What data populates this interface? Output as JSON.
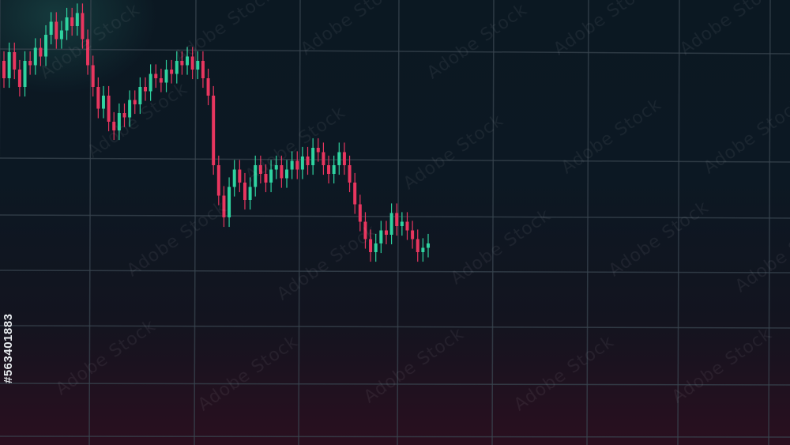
{
  "chart_data": {
    "type": "candlestick",
    "title": "",
    "xlabel": "",
    "ylabel": "",
    "grid": true,
    "colors": {
      "up": "#2fd3a0",
      "down": "#e8365f",
      "grid": "#3a4550",
      "background_top": "#0b1822",
      "background_bottom": "#2a0f1f"
    },
    "ylim": [
      0,
      100
    ],
    "close": [
      82,
      88,
      84,
      80,
      86,
      85,
      89,
      87,
      92,
      95,
      91,
      93,
      96,
      94,
      97,
      91,
      85,
      80,
      75,
      78,
      72,
      70,
      74,
      73,
      77,
      76,
      80,
      79,
      83,
      82,
      81,
      84,
      83,
      86,
      85,
      87,
      84,
      86,
      82,
      78,
      62,
      55,
      50,
      57,
      61,
      58,
      54,
      57,
      62,
      60,
      58,
      61,
      62,
      59,
      61,
      63,
      61,
      64,
      62,
      66,
      65,
      62,
      60,
      62,
      65,
      62,
      58,
      53,
      49,
      45,
      42,
      44,
      47,
      46,
      51,
      48,
      49,
      47,
      45,
      42,
      43,
      44
    ],
    "open": [
      86,
      82,
      88,
      84,
      80,
      86,
      85,
      89,
      87,
      92,
      95,
      91,
      93,
      96,
      94,
      97,
      91,
      85,
      80,
      75,
      78,
      72,
      70,
      74,
      73,
      77,
      76,
      80,
      79,
      83,
      82,
      81,
      84,
      83,
      86,
      85,
      87,
      84,
      86,
      82,
      78,
      62,
      55,
      50,
      57,
      61,
      58,
      54,
      57,
      62,
      60,
      58,
      61,
      62,
      59,
      61,
      63,
      61,
      64,
      62,
      66,
      65,
      62,
      60,
      62,
      65,
      62,
      58,
      53,
      49,
      45,
      42,
      44,
      47,
      46,
      51,
      48,
      49,
      47,
      45,
      42,
      43
    ]
  },
  "watermark": {
    "text": "Adobe Stock",
    "id": "#563401883"
  }
}
